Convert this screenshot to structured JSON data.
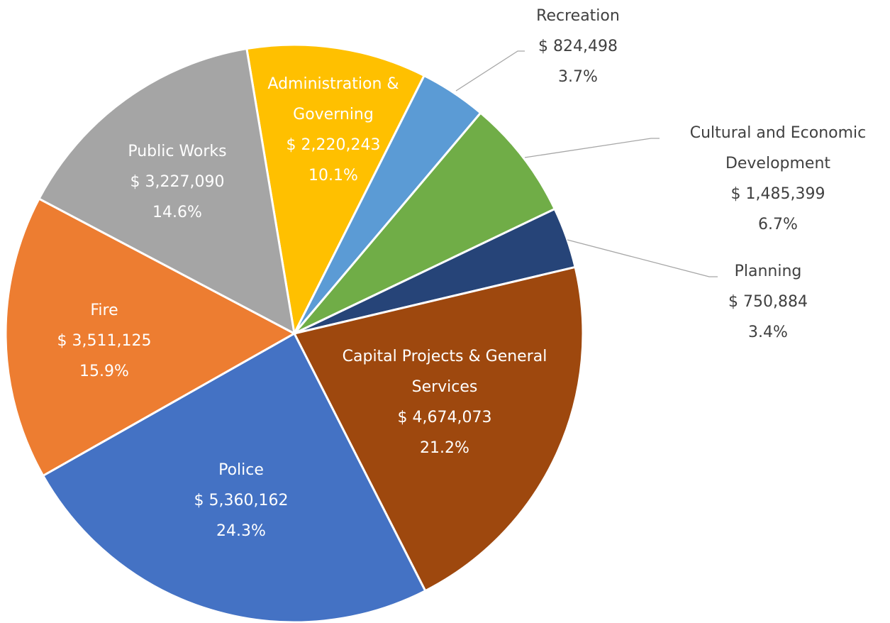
{
  "chart_data": {
    "type": "pie",
    "categories": [
      "Administration & Governing",
      "Recreation",
      "Cultural and Economic Development",
      "Planning",
      "Capital Projects & General Services",
      "Police",
      "Fire",
      "Public Works"
    ],
    "values": [
      2220243,
      824498,
      1485399,
      750884,
      4674073,
      5360162,
      3511125,
      3227090
    ],
    "value_labels": [
      "$ 2,220,243",
      "$ 824,498",
      "$ 1,485,399",
      "$ 750,884",
      "$ 4,674,073",
      "$ 5,360,162",
      "$ 3,511,125",
      "$ 3,227,090"
    ],
    "percents": [
      10.1,
      3.7,
      6.7,
      3.4,
      21.2,
      24.3,
      15.9,
      14.6
    ],
    "percent_labels": [
      "10.1%",
      "3.7%",
      "6.7%",
      "3.4%",
      "21.2%",
      "24.3%",
      "15.9%",
      "14.6%"
    ],
    "colors": [
      "#ffc000",
      "#5b9bd5",
      "#70ad47",
      "#264478",
      "#9e480e",
      "#4472c4",
      "#ed7d31",
      "#a5a5a5"
    ]
  }
}
